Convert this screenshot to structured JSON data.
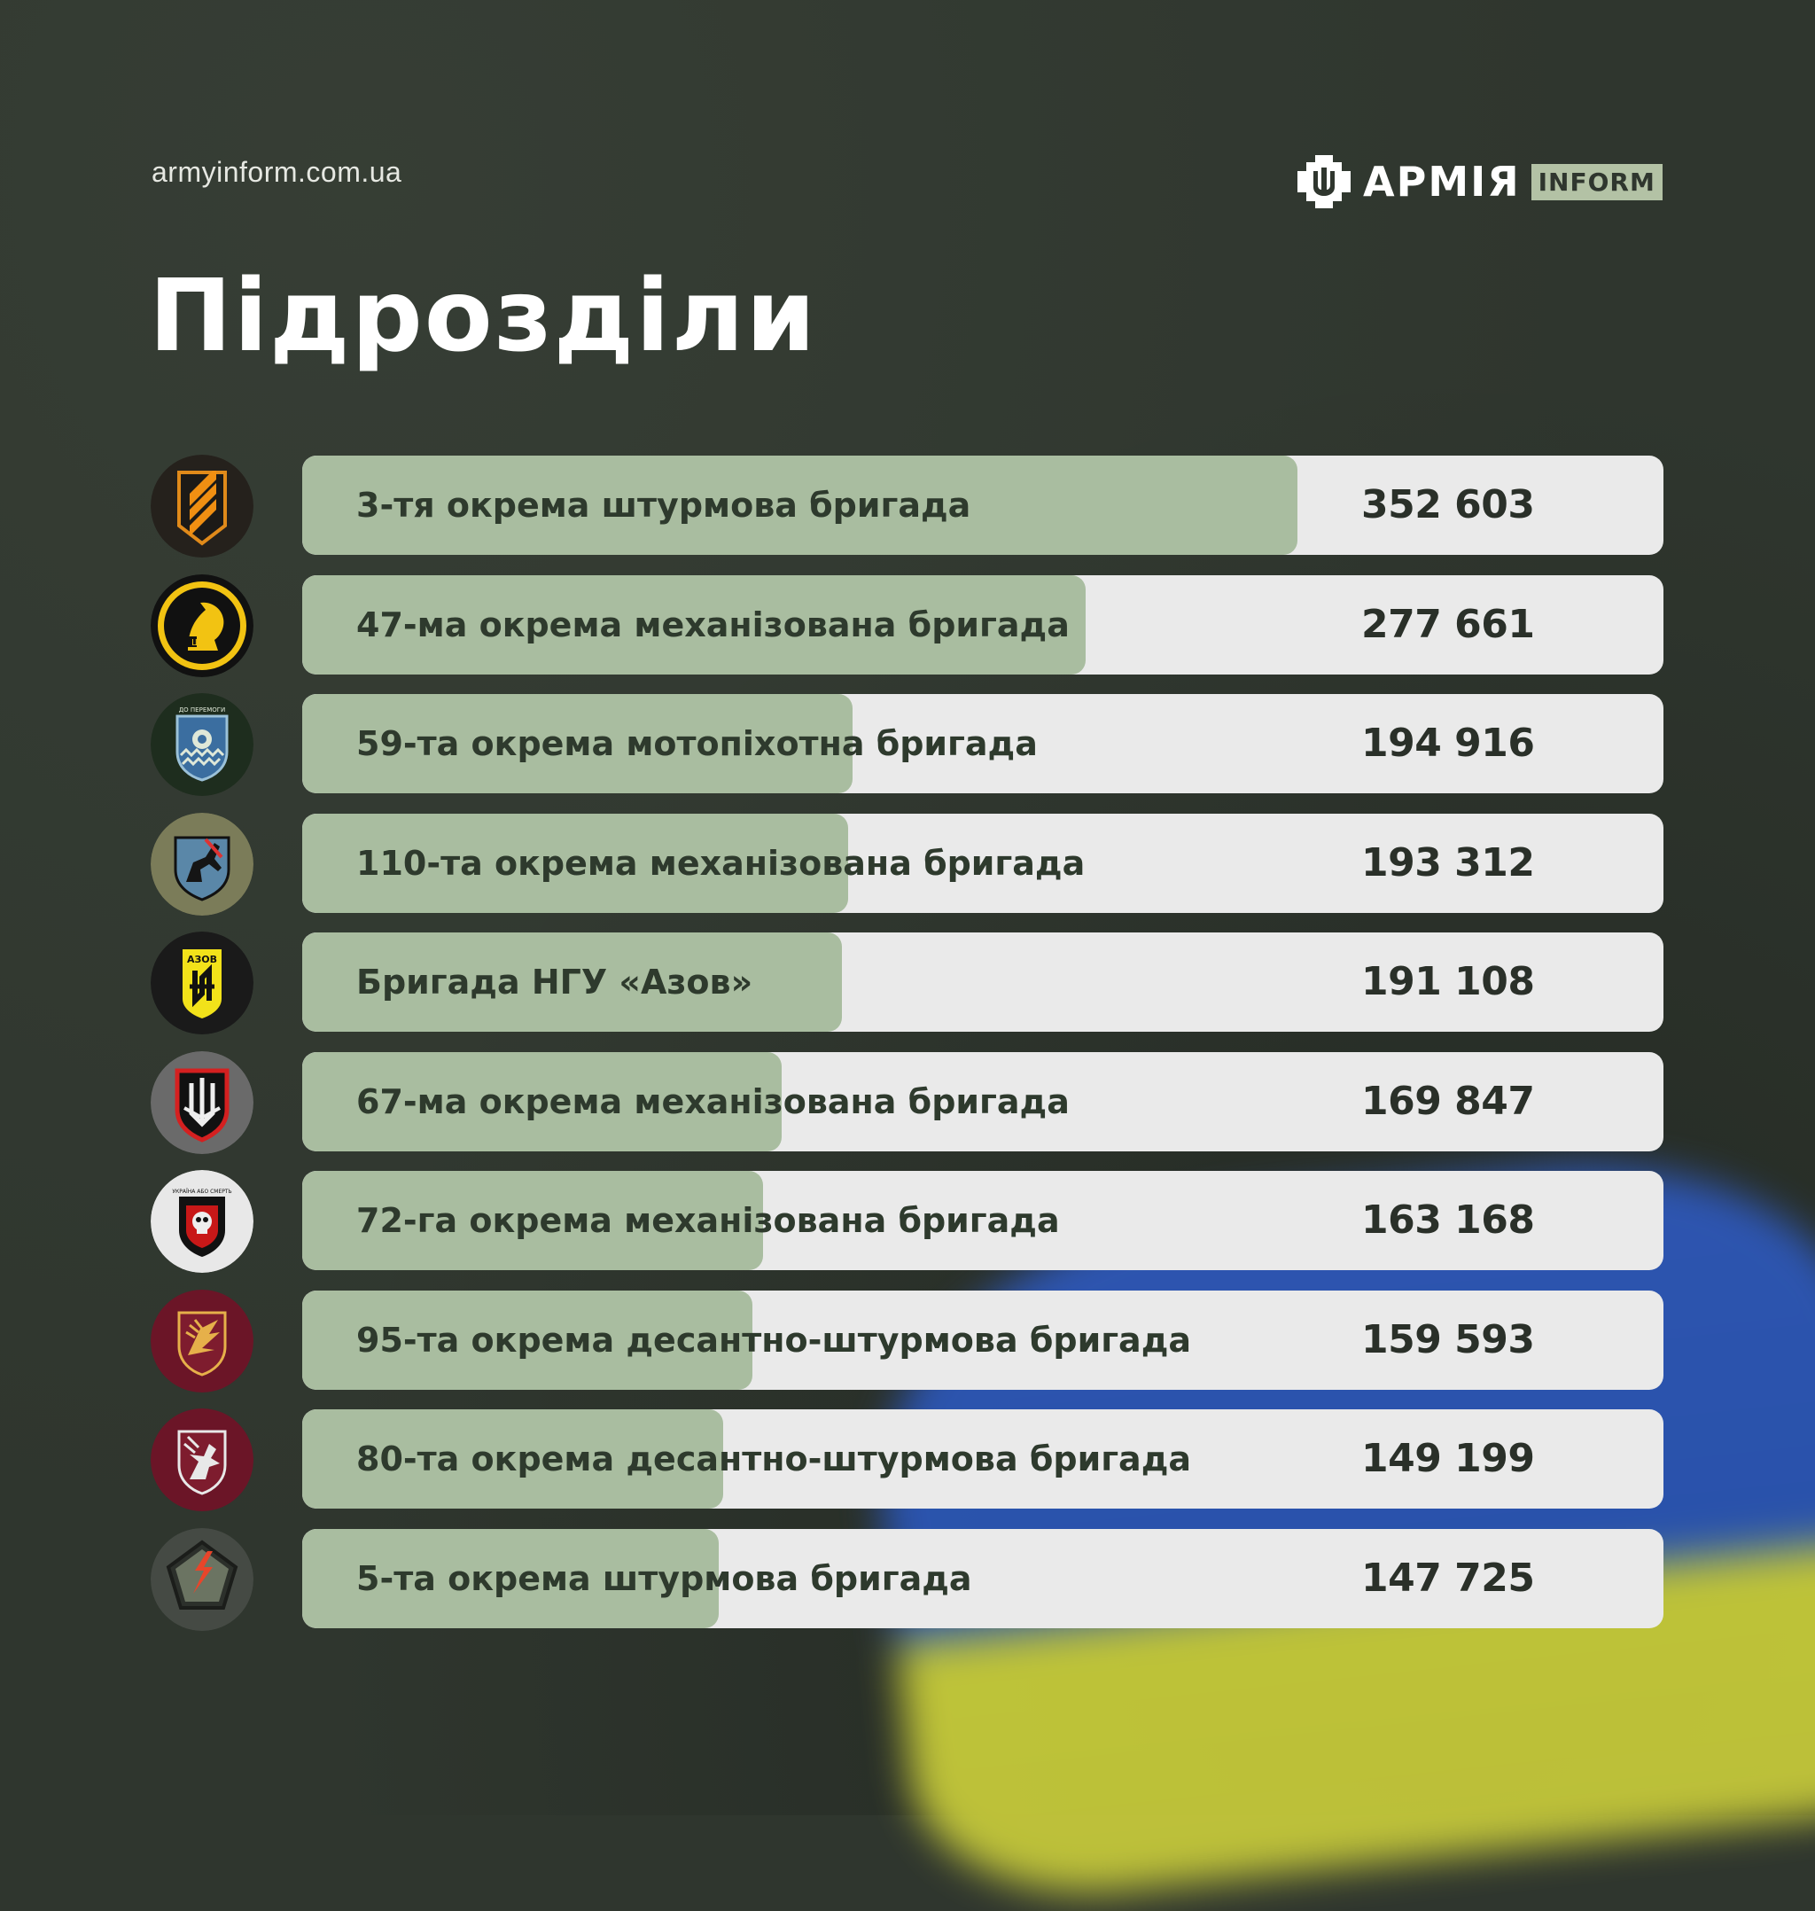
{
  "header": {
    "site": "armyinform.com.ua",
    "logo_word": "АРМІЯ",
    "logo_badge": "INFORM",
    "title": "Підрозділи"
  },
  "colors": {
    "background": "#2f362e",
    "bar_fill": "#a9bda0",
    "bar_track": "#eaeaea",
    "text_dark": "#2e3a2d"
  },
  "chart_data": {
    "type": "bar",
    "orientation": "horizontal",
    "title": "Підрозділи",
    "categories": [
      "3-тя окрема штурмова бригада",
      "47-ма окрема механізована бригада",
      "59-та окрема мотопіхотна бригада",
      "110-та окрема механізована бригада",
      "Бригада НГУ «Азов»",
      "67-ма окрема механізована бригада",
      "72-га окрема механізована бригада",
      "95-та окрема десантно-штурмова бригада",
      "80-та окрема десантно-штурмова бригада",
      "5-та окрема штурмова бригада"
    ],
    "values": [
      352603,
      277661,
      194916,
      193312,
      191108,
      169847,
      163168,
      159593,
      149199,
      147725
    ],
    "value_labels": [
      "352 603",
      "277 661",
      "194 916",
      "193 312",
      "191 108",
      "169 847",
      "163 168",
      "159 593",
      "149 199",
      "147 725"
    ],
    "icons": [
      "brigade-3-icon",
      "brigade-47-icon",
      "brigade-59-icon",
      "brigade-110-icon",
      "azov-icon",
      "brigade-67-icon",
      "brigade-72-icon",
      "brigade-95-icon",
      "brigade-80-icon",
      "brigade-5-icon"
    ],
    "icon_badge_text": {
      "brigade-59-icon": "ДО ПЕРЕМОГИ",
      "azov-icon": "АЗОВ",
      "brigade-72-icon": "УКРАЇНА АБО СМЕРТЬ"
    }
  }
}
